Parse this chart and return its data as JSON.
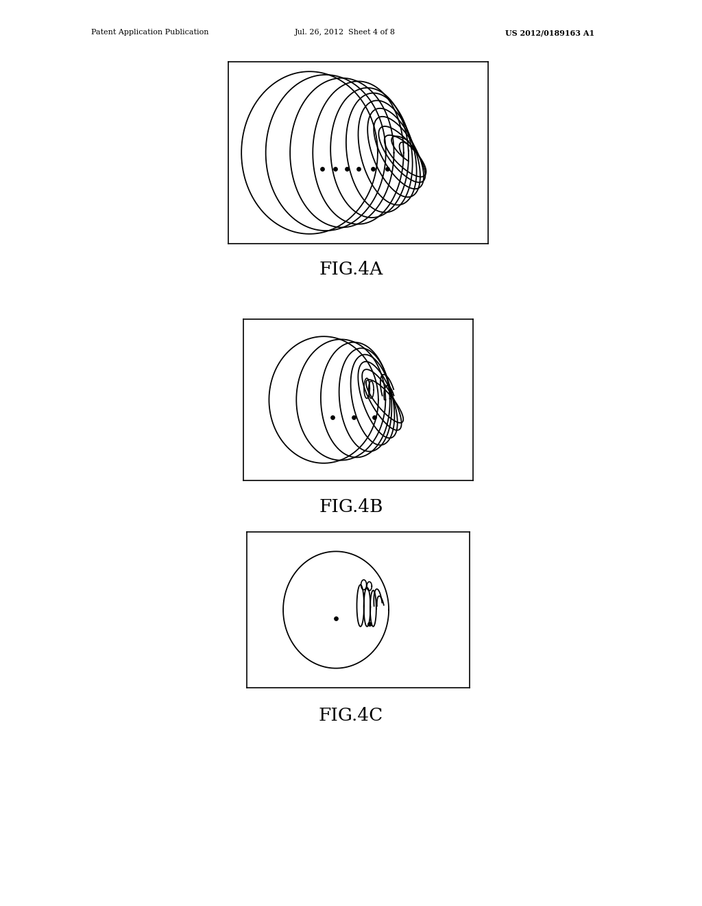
{
  "background_color": "#ffffff",
  "header_left": "Patent Application Publication",
  "header_mid": "Jul. 26, 2012  Sheet 4 of 8",
  "header_right": "US 2012/0189163 A1",
  "fig4a_label": "FIG.4A",
  "fig4b_label": "FIG.4B",
  "fig4c_label": "FIG.4C",
  "line_color": "#000000",
  "line_width": 1.3,
  "dot_color": "#000000",
  "dot_size": 5,
  "panel_lw": 1.2,
  "fig_width": 10.24,
  "fig_height": 13.2,
  "dpi": 100
}
